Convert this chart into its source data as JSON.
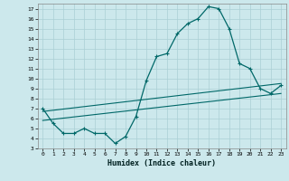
{
  "xlabel": "Humidex (Indice chaleur)",
  "xlim": [
    -0.5,
    23.5
  ],
  "ylim": [
    3,
    17.5
  ],
  "xticks": [
    0,
    1,
    2,
    3,
    4,
    5,
    6,
    7,
    8,
    9,
    10,
    11,
    12,
    13,
    14,
    15,
    16,
    17,
    18,
    19,
    20,
    21,
    22,
    23
  ],
  "yticks": [
    3,
    4,
    5,
    6,
    7,
    8,
    9,
    10,
    11,
    12,
    13,
    14,
    15,
    16,
    17
  ],
  "bg_color": "#cce8ec",
  "line_color": "#006868",
  "grid_color": "#aacfd4",
  "line1_x": [
    0,
    1,
    2,
    3,
    4,
    5,
    6,
    7,
    8,
    9,
    10,
    11,
    12,
    13,
    14,
    15,
    16,
    17,
    18,
    19,
    20,
    21,
    22,
    23
  ],
  "line1_y": [
    7.0,
    5.5,
    4.5,
    4.5,
    5.0,
    4.5,
    4.5,
    3.5,
    4.2,
    6.2,
    9.8,
    12.2,
    12.5,
    14.5,
    15.5,
    16.0,
    17.2,
    17.0,
    15.0,
    11.5,
    11.0,
    9.0,
    8.5,
    9.3
  ],
  "line2_x": [
    0,
    23
  ],
  "line2_y": [
    6.7,
    9.5
  ],
  "line3_x": [
    0,
    23
  ],
  "line3_y": [
    5.8,
    8.5
  ]
}
